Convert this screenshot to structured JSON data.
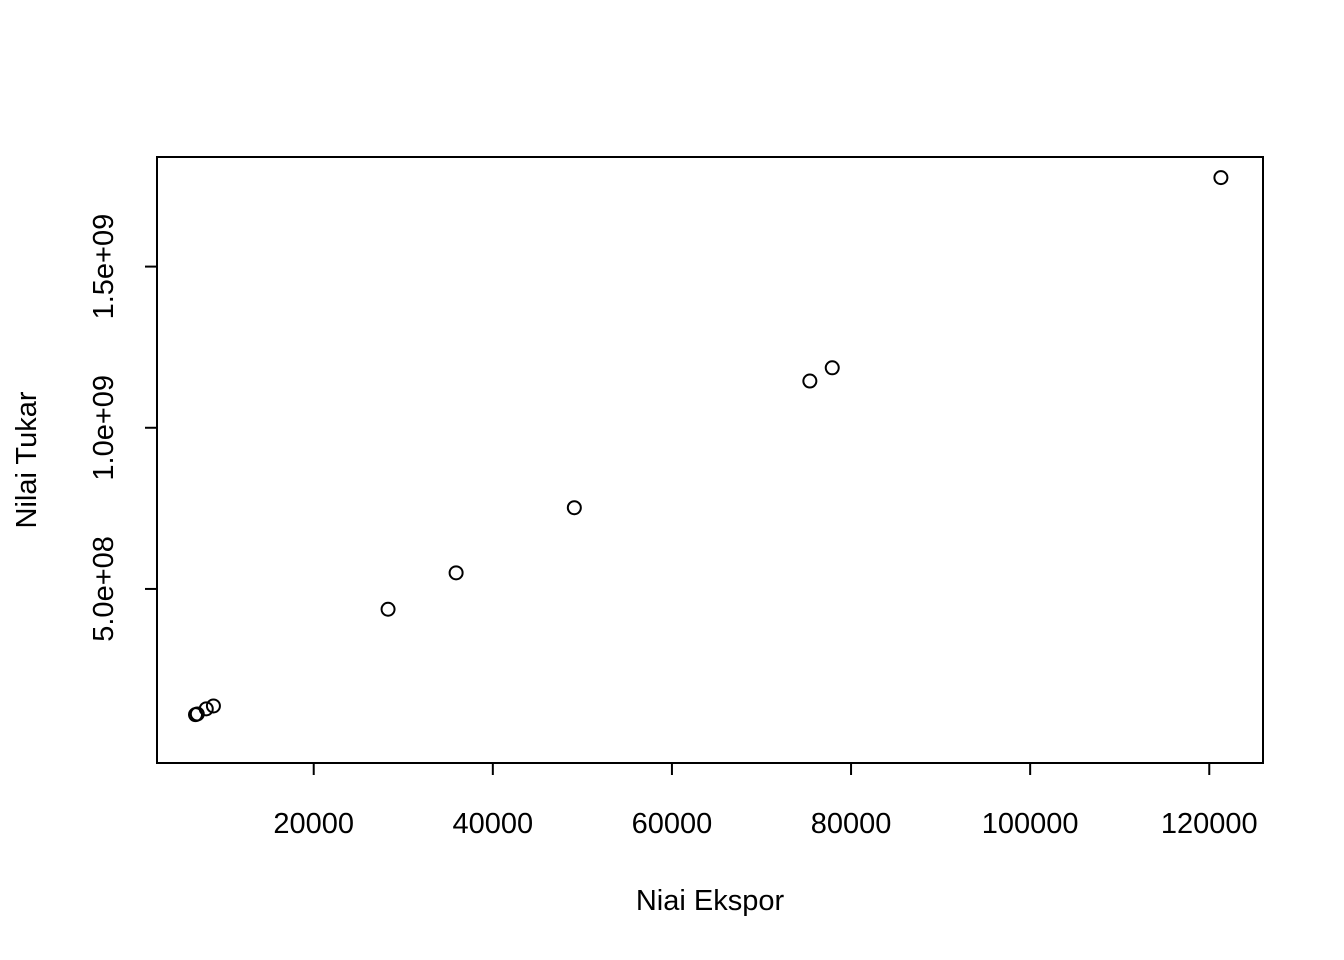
{
  "chart_data": {
    "type": "scatter",
    "title": "",
    "xlabel": "Niai Ekspor",
    "ylabel": "Nilai Tukar",
    "xlim": [
      2500,
      126000
    ],
    "ylim": [
      -40000000,
      1840000000
    ],
    "x_ticks": [
      20000,
      40000,
      60000,
      80000,
      100000,
      120000
    ],
    "x_tick_labels": [
      "20000",
      "40000",
      "60000",
      "80000",
      "100000",
      "120000"
    ],
    "y_ticks": [
      500000000,
      1000000000,
      1500000000
    ],
    "y_tick_labels": [
      "5.0e+08",
      "1.0e+09",
      "1.5e+09"
    ],
    "grid": false,
    "legend": "none",
    "marker": "open-circle",
    "points": [
      {
        "x": 6800,
        "y": 110000000
      },
      {
        "x": 7000,
        "y": 112000000
      },
      {
        "x": 8000,
        "y": 128000000
      },
      {
        "x": 8800,
        "y": 137000000
      },
      {
        "x": 28300,
        "y": 437000000
      },
      {
        "x": 35900,
        "y": 550000000
      },
      {
        "x": 49100,
        "y": 752000000
      },
      {
        "x": 75400,
        "y": 1145000000
      },
      {
        "x": 77900,
        "y": 1186000000
      },
      {
        "x": 121300,
        "y": 1776000000
      }
    ]
  }
}
